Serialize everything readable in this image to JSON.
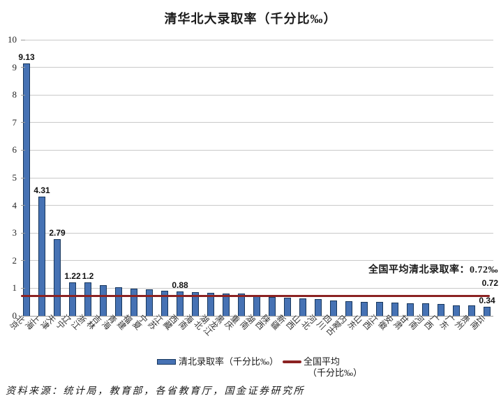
{
  "title": "清华北大录取率（千分比‰）",
  "average_annotation": "全国平均清北录取率：0.72‰",
  "average_line_label": "0.72",
  "legend": {
    "bar_series": "清北录取率（千分比‰）",
    "line_series_row1": "全国平均",
    "line_series_row2": "（千分比‰）"
  },
  "source": "资料来源：统计局，教育部，各省教育厅，国金证券研究所",
  "colors": {
    "bar_fill": "#4672b4",
    "bar_border": "#16365c",
    "average_line": "#8b2222",
    "grid": "#c9c9c9"
  },
  "chart_data": {
    "type": "bar",
    "title": "清华北大录取率（千分比‰）",
    "xlabel": "",
    "ylabel": "",
    "ylim": [
      0,
      10
    ],
    "ytick_step": 1,
    "grid": true,
    "legend_position": "bottom",
    "categories": [
      "北京",
      "上海",
      "天津",
      "辽宁",
      "浙江",
      "吉林",
      "青海",
      "福建",
      "宁夏",
      "江苏",
      "西藏",
      "海南",
      "湖北",
      "黑龙江",
      "重庆",
      "湖南",
      "陕西",
      "新疆",
      "山西",
      "河北",
      "四川",
      "内蒙古",
      "山东",
      "江西",
      "安徽",
      "甘肃",
      "河南",
      "广西",
      "广东",
      "贵州",
      "云南"
    ],
    "values": [
      9.13,
      4.31,
      2.79,
      1.22,
      1.2,
      1.1,
      1.04,
      0.99,
      0.95,
      0.91,
      0.88,
      0.86,
      0.84,
      0.82,
      0.8,
      0.76,
      0.68,
      0.66,
      0.64,
      0.6,
      0.56,
      0.53,
      0.51,
      0.5,
      0.47,
      0.45,
      0.45,
      0.42,
      0.37,
      0.39,
      0.34
    ],
    "data_labels": [
      "9.13",
      "4.31",
      "2.79",
      "1.22",
      "1.2",
      null,
      null,
      null,
      null,
      null,
      "0.88",
      null,
      null,
      null,
      null,
      null,
      null,
      null,
      null,
      null,
      null,
      null,
      null,
      null,
      null,
      null,
      null,
      null,
      null,
      null,
      "0.34"
    ],
    "average_line_value": 0.72,
    "series_names": [
      "清北录取率（千分比‰）",
      "全国平均（千分比‰）"
    ]
  }
}
